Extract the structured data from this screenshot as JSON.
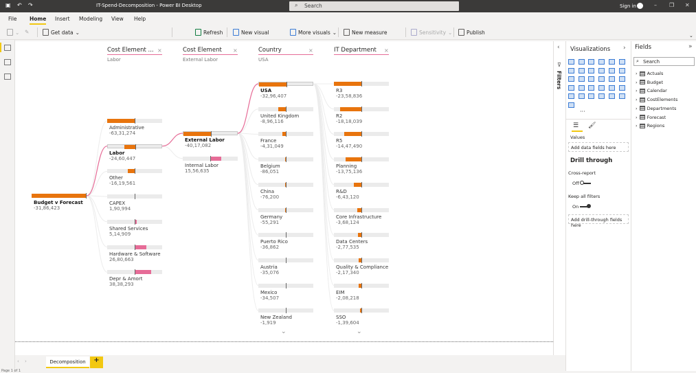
{
  "window": {
    "title": "IT-Spend-Decomposition - Power BI Desktop",
    "search_placeholder": "Search",
    "sign_in": "Sign in"
  },
  "menu": [
    "File",
    "Home",
    "Insert",
    "Modeling",
    "View",
    "Help"
  ],
  "menu_active": "Home",
  "ribbon": {
    "get_data": "Get data",
    "refresh": "Refresh",
    "new_visual": "New visual",
    "more_visuals": "More visuals",
    "new_measure": "New measure",
    "sensitivity": "Sensitivity",
    "publish": "Publish"
  },
  "colors": {
    "negative": "#e8740d",
    "positive": "#e66c97",
    "connector_selected": "#e66c97",
    "accent": "#f2c811"
  },
  "tree": {
    "root": {
      "label": "Budget v Forecast",
      "value": -3186423,
      "display": "-31,86,423"
    },
    "columns": [
      {
        "header": "Cost Element ...",
        "selected": "Labor",
        "nodes": [
          {
            "label": "Administrative",
            "value": -6331274,
            "display": "-63,31,274"
          },
          {
            "label": "Labor",
            "value": -2460447,
            "display": "-24,60,447"
          },
          {
            "label": "Other",
            "value": -1619561,
            "display": "-16,19,561"
          },
          {
            "label": "CAPEX",
            "value": 190994,
            "display": "1,90,994"
          },
          {
            "label": "Shared Services",
            "value": 514909,
            "display": "5,14,909"
          },
          {
            "label": "Hardware & Software",
            "value": 2680663,
            "display": "26,80,663"
          },
          {
            "label": "Depr & Amort",
            "value": 3838293,
            "display": "38,38,293"
          }
        ]
      },
      {
        "header": "Cost Element",
        "selected": "External Labor",
        "nodes": [
          {
            "label": "External Labor",
            "value": -4017082,
            "display": "-40,17,082"
          },
          {
            "label": "Internal Labor",
            "value": 1556635,
            "display": "15,56,635"
          }
        ]
      },
      {
        "header": "Country",
        "selected": "USA",
        "more": true,
        "nodes": [
          {
            "label": "USA",
            "value": -3296407,
            "display": "-32,96,407"
          },
          {
            "label": "United Kingdom",
            "value": -896116,
            "display": "-8,96,116"
          },
          {
            "label": "France",
            "value": -431049,
            "display": "-4,31,049"
          },
          {
            "label": "Belgium",
            "value": -86051,
            "display": "-86,051"
          },
          {
            "label": "China",
            "value": -76200,
            "display": "-76,200"
          },
          {
            "label": "Germany",
            "value": -55291,
            "display": "-55,291"
          },
          {
            "label": "Puerto Rico",
            "value": -36862,
            "display": "-36,862"
          },
          {
            "label": "Austria",
            "value": -35076,
            "display": "-35,076"
          },
          {
            "label": "Mexico",
            "value": -34507,
            "display": "-34,507"
          },
          {
            "label": "New Zealand",
            "value": -1919,
            "display": "-1,919"
          }
        ]
      },
      {
        "header": "IT Department",
        "selected": "",
        "more": true,
        "nodes": [
          {
            "label": "R3",
            "value": -2358836,
            "display": "-23,58,836"
          },
          {
            "label": "R2",
            "value": -1818039,
            "display": "-18,18,039"
          },
          {
            "label": "R5",
            "value": -1447490,
            "display": "-14,47,490"
          },
          {
            "label": "Planning",
            "value": -1375136,
            "display": "-13,75,136"
          },
          {
            "label": "R&D",
            "value": -643120,
            "display": "-6,43,120"
          },
          {
            "label": "Core Infrastructure",
            "value": -368124,
            "display": "-3,68,124"
          },
          {
            "label": "Data Centers",
            "value": -277535,
            "display": "-2,77,535"
          },
          {
            "label": "Quality & Compliance",
            "value": -217340,
            "display": "-2,17,340"
          },
          {
            "label": "EIM",
            "value": -208218,
            "display": "-2,08,218"
          },
          {
            "label": "SSO",
            "value": -139604,
            "display": "-1,39,604"
          }
        ]
      }
    ]
  },
  "pages": {
    "tabs": [
      "Decomposition"
    ],
    "add": "+",
    "status": "Page 1 of 1"
  },
  "filters_pane": {
    "label": "Filters"
  },
  "viz_pane": {
    "title": "Visualizations",
    "values_label": "Values",
    "values_well": "Add data fields here",
    "drill_title": "Drill through",
    "cross_report": "Cross-report",
    "cross_state": "Off",
    "keep_filters": "Keep all filters",
    "keep_state": "On",
    "drill_well": "Add drill-through fields here",
    "more": "···"
  },
  "fields_pane": {
    "title": "Fields",
    "search_placeholder": "Search",
    "tables": [
      "Actuals",
      "Budget",
      "Calendar",
      "CostElements",
      "Departments",
      "Forecast",
      "Regions"
    ]
  }
}
